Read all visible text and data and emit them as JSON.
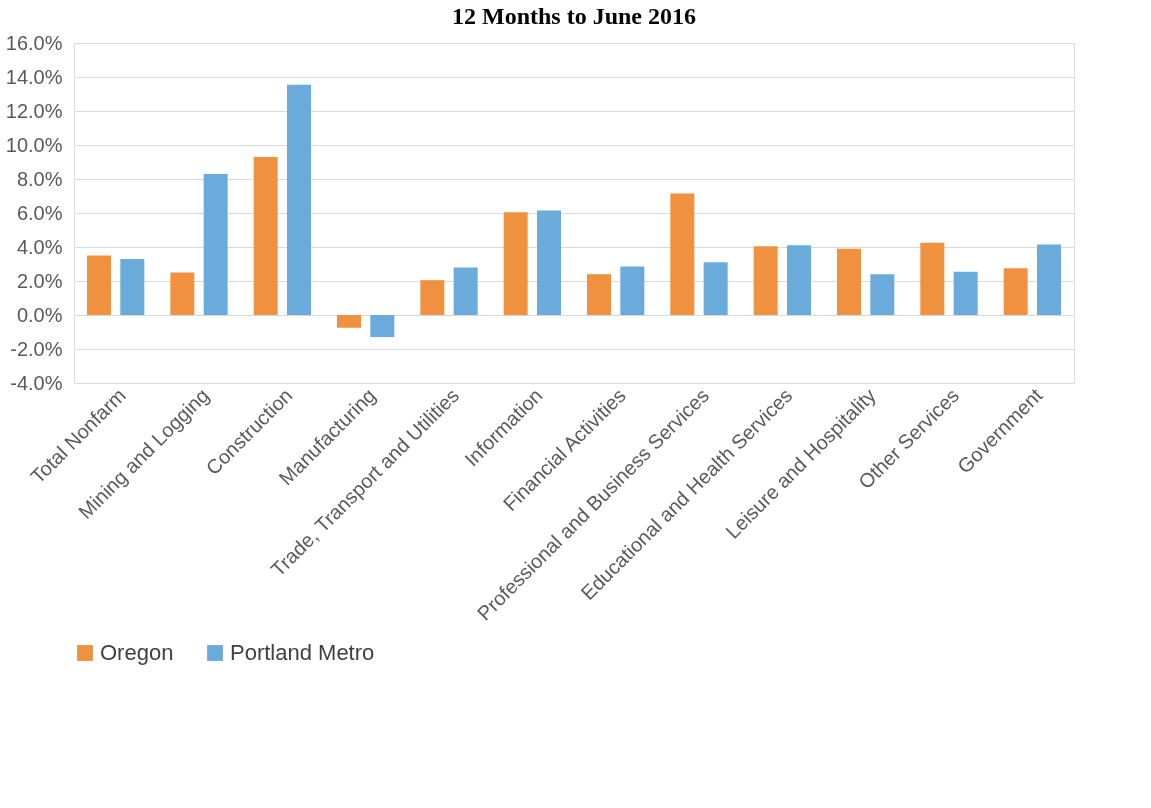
{
  "chart_data": {
    "type": "bar",
    "title": "12 Months to June 2016",
    "categories": [
      "Total Nonfarm",
      "Mining and Logging",
      "Construction",
      "Manufacturing",
      "Trade, Transport and Utilities",
      "Information",
      "Financial Activities",
      "Professional and Business Services",
      "Educational and Health Services",
      "Leisure and Hospitality",
      "Other Services",
      "Government"
    ],
    "series": [
      {
        "name": "Oregon",
        "color": "#f0913f",
        "values": [
          3.5,
          2.5,
          9.3,
          -0.75,
          2.05,
          6.05,
          2.4,
          7.15,
          4.05,
          3.9,
          4.25,
          2.75
        ]
      },
      {
        "name": "Portland Metro",
        "color": "#6aabdb",
        "values": [
          3.3,
          8.3,
          13.55,
          -1.3,
          2.8,
          6.15,
          2.85,
          3.1,
          4.1,
          2.4,
          2.55,
          4.15
        ]
      }
    ],
    "ylim": [
      -4,
      16
    ],
    "yticks": [
      {
        "value": -4,
        "label": "-4.0%"
      },
      {
        "value": -2,
        "label": "-2.0%"
      },
      {
        "value": 0,
        "label": "0.0%"
      },
      {
        "value": 2,
        "label": "2.0%"
      },
      {
        "value": 4,
        "label": "4.0%"
      },
      {
        "value": 6,
        "label": "6.0%"
      },
      {
        "value": 8,
        "label": "8.0%"
      },
      {
        "value": 10,
        "label": "10.0%"
      },
      {
        "value": 12,
        "label": "12.0%"
      },
      {
        "value": 14,
        "label": "14.0%"
      },
      {
        "value": 16,
        "label": "16.0%"
      }
    ],
    "grid": "y",
    "legend": "bottom"
  }
}
